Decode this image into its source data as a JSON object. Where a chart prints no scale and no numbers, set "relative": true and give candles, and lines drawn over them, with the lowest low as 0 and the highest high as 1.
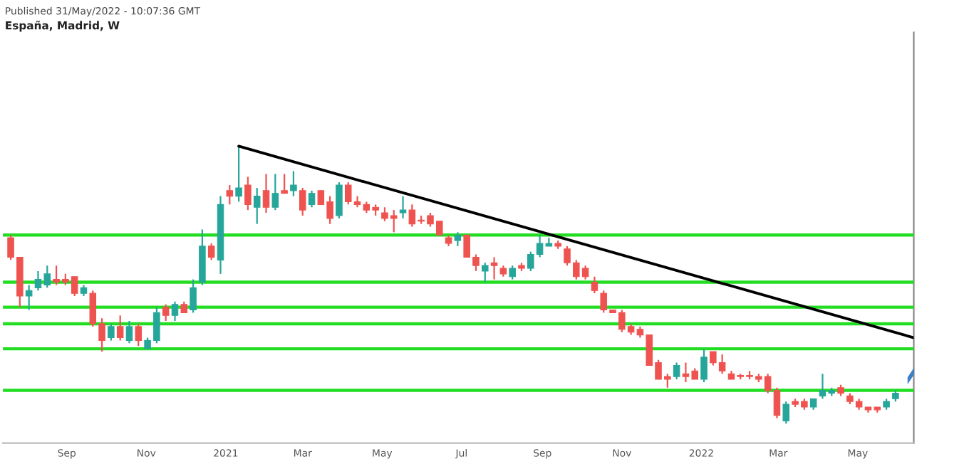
{
  "chart_data": {
    "type": "candlestick",
    "relative": true,
    "title": "España, Madrid, W",
    "annotations": [
      "Published 31/May/2022 - 10:07:36 GMT"
    ],
    "x": [
      "2020-07-20",
      "2020-07-27",
      "2020-08-03",
      "2020-08-10",
      "2020-08-17",
      "2020-08-24",
      "2020-08-31",
      "2020-09-07",
      "2020-09-14",
      "2020-09-21",
      "2020-09-28",
      "2020-10-05",
      "2020-10-12",
      "2020-10-19",
      "2020-10-26",
      "2020-11-02",
      "2020-11-09",
      "2020-11-16",
      "2020-11-23",
      "2020-11-30",
      "2020-12-07",
      "2020-12-14",
      "2020-12-21",
      "2020-12-28",
      "2021-01-04",
      "2021-01-11",
      "2021-01-18",
      "2021-01-25",
      "2021-02-01",
      "2021-02-08",
      "2021-02-15",
      "2021-02-22",
      "2021-03-01",
      "2021-03-08",
      "2021-03-15",
      "2021-03-22",
      "2021-03-29",
      "2021-04-05",
      "2021-04-12",
      "2021-04-19",
      "2021-04-26",
      "2021-05-03",
      "2021-05-10",
      "2021-05-17",
      "2021-05-24",
      "2021-05-31",
      "2021-06-07",
      "2021-06-14",
      "2021-06-21",
      "2021-06-28",
      "2021-07-05",
      "2021-07-12",
      "2021-07-19",
      "2021-07-26",
      "2021-08-02",
      "2021-08-09",
      "2021-08-16",
      "2021-08-23",
      "2021-08-30",
      "2021-09-06",
      "2021-09-13",
      "2021-09-20",
      "2021-09-27",
      "2021-10-04",
      "2021-10-11",
      "2021-10-18",
      "2021-10-25",
      "2021-11-01",
      "2021-11-08",
      "2021-11-15",
      "2021-11-22",
      "2021-11-29",
      "2021-12-06",
      "2021-12-13",
      "2021-12-20",
      "2021-12-27",
      "2022-01-03",
      "2022-01-10",
      "2022-01-17",
      "2022-01-24",
      "2022-01-31",
      "2022-02-07",
      "2022-02-14",
      "2022-02-21",
      "2022-02-28",
      "2022-03-07",
      "2022-03-14",
      "2022-03-21",
      "2022-03-28",
      "2022-04-04",
      "2022-04-11",
      "2022-04-18",
      "2022-04-25",
      "2022-05-02",
      "2022-05-09",
      "2022-05-16",
      "2022-05-23",
      "2022-05-30"
    ],
    "ohlc": [
      [
        0.67,
        0.68,
        0.59,
        0.6
      ],
      [
        0.6,
        0.6,
        0.42,
        0.46
      ],
      [
        0.46,
        0.5,
        0.41,
        0.48
      ],
      [
        0.49,
        0.55,
        0.48,
        0.52
      ],
      [
        0.5,
        0.57,
        0.49,
        0.54
      ],
      [
        0.52,
        0.57,
        0.5,
        0.51
      ],
      [
        0.52,
        0.54,
        0.5,
        0.51
      ],
      [
        0.53,
        0.53,
        0.46,
        0.47
      ],
      [
        0.47,
        0.5,
        0.46,
        0.49
      ],
      [
        0.47,
        0.48,
        0.35,
        0.36
      ],
      [
        0.36,
        0.38,
        0.26,
        0.3
      ],
      [
        0.31,
        0.36,
        0.3,
        0.35
      ],
      [
        0.35,
        0.39,
        0.3,
        0.31
      ],
      [
        0.3,
        0.37,
        0.29,
        0.35
      ],
      [
        0.35,
        0.36,
        0.28,
        0.3
      ],
      [
        0.27,
        0.31,
        0.27,
        0.3
      ],
      [
        0.3,
        0.42,
        0.29,
        0.4
      ],
      [
        0.42,
        0.43,
        0.37,
        0.39
      ],
      [
        0.39,
        0.44,
        0.37,
        0.43
      ],
      [
        0.43,
        0.44,
        0.4,
        0.4
      ],
      [
        0.41,
        0.52,
        0.4,
        0.49
      ],
      [
        0.51,
        0.7,
        0.5,
        0.64
      ],
      [
        0.64,
        0.65,
        0.59,
        0.6
      ],
      [
        0.59,
        0.82,
        0.54,
        0.79
      ],
      [
        0.84,
        0.86,
        0.79,
        0.82
      ],
      [
        0.82,
        1.0,
        0.8,
        0.85
      ],
      [
        0.86,
        0.89,
        0.77,
        0.79
      ],
      [
        0.78,
        0.85,
        0.72,
        0.82
      ],
      [
        0.84,
        0.9,
        0.76,
        0.78
      ],
      [
        0.78,
        0.9,
        0.77,
        0.83
      ],
      [
        0.84,
        0.9,
        0.83,
        0.83
      ],
      [
        0.84,
        0.91,
        0.82,
        0.86
      ],
      [
        0.84,
        0.85,
        0.75,
        0.77
      ],
      [
        0.79,
        0.84,
        0.78,
        0.83
      ],
      [
        0.84,
        0.84,
        0.79,
        0.79
      ],
      [
        0.8,
        0.82,
        0.72,
        0.74
      ],
      [
        0.75,
        0.87,
        0.74,
        0.86
      ],
      [
        0.86,
        0.87,
        0.79,
        0.8
      ],
      [
        0.8,
        0.82,
        0.78,
        0.79
      ],
      [
        0.79,
        0.8,
        0.76,
        0.77
      ],
      [
        0.78,
        0.79,
        0.75,
        0.77
      ],
      [
        0.76,
        0.78,
        0.73,
        0.74
      ],
      [
        0.75,
        0.77,
        0.69,
        0.74
      ],
      [
        0.76,
        0.82,
        0.74,
        0.77
      ],
      [
        0.77,
        0.79,
        0.71,
        0.72
      ],
      [
        0.73,
        0.75,
        0.72,
        0.73
      ],
      [
        0.75,
        0.76,
        0.71,
        0.72
      ],
      [
        0.73,
        0.73,
        0.68,
        0.68
      ],
      [
        0.67,
        0.68,
        0.64,
        0.65
      ],
      [
        0.66,
        0.69,
        0.64,
        0.68
      ],
      [
        0.68,
        0.68,
        0.6,
        0.6
      ],
      [
        0.6,
        0.61,
        0.55,
        0.57
      ],
      [
        0.55,
        0.58,
        0.51,
        0.57
      ],
      [
        0.58,
        0.6,
        0.52,
        0.57
      ],
      [
        0.56,
        0.57,
        0.53,
        0.54
      ],
      [
        0.53,
        0.57,
        0.52,
        0.56
      ],
      [
        0.57,
        0.58,
        0.55,
        0.56
      ],
      [
        0.56,
        0.62,
        0.55,
        0.61
      ],
      [
        0.61,
        0.68,
        0.6,
        0.65
      ],
      [
        0.64,
        0.67,
        0.64,
        0.65
      ],
      [
        0.65,
        0.66,
        0.63,
        0.64
      ],
      [
        0.63,
        0.64,
        0.57,
        0.58
      ],
      [
        0.58,
        0.59,
        0.52,
        0.53
      ],
      [
        0.56,
        0.57,
        0.52,
        0.53
      ],
      [
        0.51,
        0.53,
        0.47,
        0.48
      ],
      [
        0.47,
        0.48,
        0.4,
        0.41
      ],
      [
        0.41,
        0.41,
        0.4,
        0.4
      ],
      [
        0.4,
        0.41,
        0.33,
        0.34
      ],
      [
        0.35,
        0.36,
        0.32,
        0.33
      ],
      [
        0.34,
        0.35,
        0.31,
        0.32
      ],
      [
        0.32,
        0.32,
        0.21,
        0.21
      ],
      [
        0.22,
        0.23,
        0.16,
        0.16
      ],
      [
        0.17,
        0.18,
        0.13,
        0.16
      ],
      [
        0.17,
        0.22,
        0.16,
        0.21
      ],
      [
        0.18,
        0.22,
        0.15,
        0.17
      ],
      [
        0.19,
        0.2,
        0.16,
        0.16
      ],
      [
        0.16,
        0.27,
        0.15,
        0.24
      ],
      [
        0.26,
        0.26,
        0.21,
        0.22
      ],
      [
        0.22,
        0.25,
        0.18,
        0.19
      ],
      [
        0.18,
        0.19,
        0.16,
        0.16
      ],
      [
        0.17,
        0.18,
        0.16,
        0.17
      ],
      [
        0.17,
        0.19,
        0.16,
        0.17
      ],
      [
        0.17,
        0.18,
        0.15,
        0.16
      ],
      [
        0.17,
        0.18,
        0.11,
        0.12
      ],
      [
        0.12,
        0.13,
        0.02,
        0.03
      ],
      [
        0.01,
        0.08,
        0.0,
        0.07
      ],
      [
        0.08,
        0.09,
        0.06,
        0.07
      ],
      [
        0.08,
        0.09,
        0.05,
        0.06
      ],
      [
        0.06,
        0.09,
        0.05,
        0.09
      ],
      [
        0.1,
        0.18,
        0.09,
        0.12
      ],
      [
        0.11,
        0.13,
        0.1,
        0.12
      ],
      [
        0.13,
        0.14,
        0.1,
        0.11
      ],
      [
        0.1,
        0.11,
        0.07,
        0.08
      ],
      [
        0.08,
        0.09,
        0.05,
        0.06
      ],
      [
        0.06,
        0.06,
        0.04,
        0.05
      ],
      [
        0.06,
        0.06,
        0.04,
        0.05
      ],
      [
        0.06,
        0.09,
        0.05,
        0.08
      ],
      [
        0.09,
        0.12,
        0.08,
        0.11
      ]
    ],
    "colors": [
      "#ef5350",
      "#ef5350",
      "#26a69a",
      "#26a69a",
      "#26a69a",
      "#ef5350",
      "#ef5350",
      "#ef5350",
      "#26a69a",
      "#ef5350",
      "#ef5350",
      "#26a69a",
      "#ef5350",
      "#26a69a",
      "#ef5350",
      "#26a69a",
      "#26a69a",
      "#ef5350",
      "#26a69a",
      "#ef5350",
      "#26a69a",
      "#26a69a",
      "#ef5350",
      "#26a69a",
      "#ef5350",
      "#26a69a",
      "#ef5350",
      "#26a69a",
      "#ef5350",
      "#26a69a",
      "#ef5350",
      "#26a69a",
      "#ef5350",
      "#26a69a",
      "#ef5350",
      "#ef5350",
      "#26a69a",
      "#ef5350",
      "#ef5350",
      "#ef5350",
      "#ef5350",
      "#ef5350",
      "#ef5350",
      "#26a69a",
      "#ef5350",
      "#ef5350",
      "#ef5350",
      "#ef5350",
      "#ef5350",
      "#26a69a",
      "#ef5350",
      "#ef5350",
      "#26a69a",
      "#ef5350",
      "#ef5350",
      "#26a69a",
      "#ef5350",
      "#26a69a",
      "#26a69a",
      "#26a69a",
      "#ef5350",
      "#ef5350",
      "#ef5350",
      "#ef5350",
      "#ef5350",
      "#ef5350",
      "#ef5350",
      "#ef5350",
      "#ef5350",
      "#ef5350",
      "#ef5350",
      "#ef5350",
      "#ef5350",
      "#26a69a",
      "#ef5350",
      "#ef5350",
      "#26a69a",
      "#ef5350",
      "#ef5350",
      "#ef5350",
      "#ef5350",
      "#ef5350",
      "#ef5350",
      "#ef5350",
      "#ef5350",
      "#26a69a",
      "#ef5350",
      "#ef5350",
      "#26a69a",
      "#26a69a",
      "#26a69a",
      "#ef5350",
      "#ef5350",
      "#ef5350",
      "#ef5350",
      "#ef5350",
      "#26a69a",
      "#26a69a"
    ],
    "series": [
      {
        "type": "line",
        "color": "#000000",
        "x": [
          "2021-01-11",
          "2022-06-13"
        ],
        "values": [
          1.0,
          0.31
        ]
      }
    ],
    "ref_lines": [
      {
        "axis": "y",
        "value": 0.68,
        "color": "#22dd22"
      },
      {
        "axis": "y",
        "value": 0.51,
        "color": "#22dd22"
      },
      {
        "axis": "y",
        "value": 0.42,
        "color": "#22dd22"
      },
      {
        "axis": "y",
        "value": 0.36,
        "color": "#22dd22"
      },
      {
        "axis": "y",
        "value": 0.27,
        "color": "#22dd22"
      },
      {
        "axis": "y",
        "value": 0.12,
        "color": "#22dd22"
      }
    ],
    "xlim": [
      "2020-07-14",
      "2022-06-13"
    ],
    "xticks": [
      {
        "value": "2020-09-01",
        "label": "Sep"
      },
      {
        "value": "2020-11-01",
        "label": "Nov"
      },
      {
        "value": "2021-01-01",
        "label": "2021"
      },
      {
        "value": "2021-03-01",
        "label": "Mar"
      },
      {
        "value": "2021-05-01",
        "label": "May"
      },
      {
        "value": "2021-07-01",
        "label": "Jul"
      },
      {
        "value": "2021-09-01",
        "label": "Sep"
      },
      {
        "value": "2021-11-01",
        "label": "Nov"
      },
      {
        "value": "2022-01-01",
        "label": "2022"
      },
      {
        "value": "2022-03-01",
        "label": "Mar"
      },
      {
        "value": "2022-05-01",
        "label": "May"
      }
    ],
    "tick_labels": "x"
  }
}
